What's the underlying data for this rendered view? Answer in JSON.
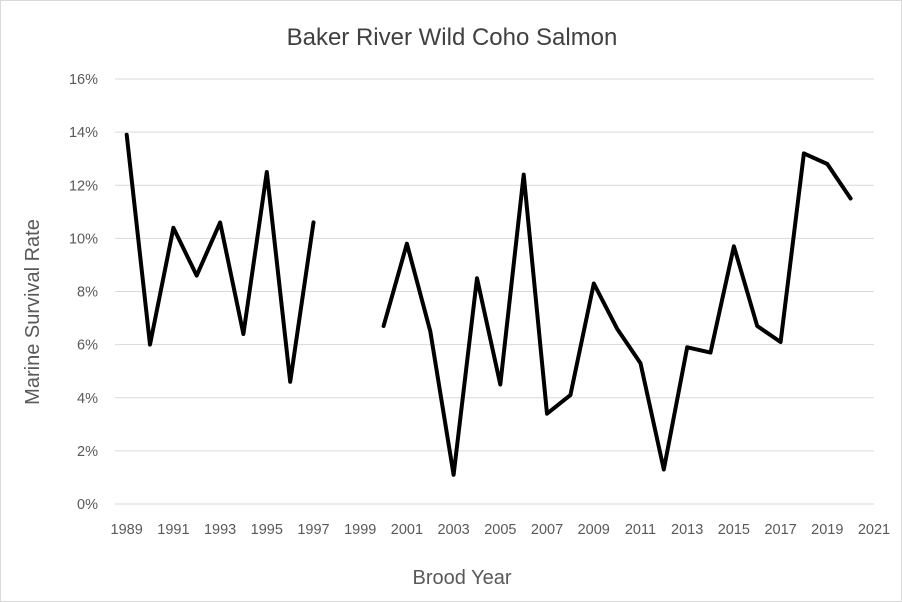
{
  "chart_data": {
    "type": "line",
    "title": "Baker River Wild Coho Salmon",
    "xlabel": "Brood Year",
    "ylabel": "Marine Survival Rate",
    "ylim": [
      0,
      0.16
    ],
    "xlim": [
      1988.5,
      2021
    ],
    "y_ticks": [
      "0%",
      "2%",
      "4%",
      "6%",
      "8%",
      "10%",
      "12%",
      "14%",
      "16%"
    ],
    "x_ticks": [
      "1989",
      "1991",
      "1993",
      "1995",
      "1997",
      "1999",
      "2001",
      "2003",
      "2005",
      "2007",
      "2009",
      "2011",
      "2013",
      "2015",
      "2017",
      "2019",
      "2021"
    ],
    "grid": true,
    "legend": "none",
    "series": [
      {
        "x": [
          1989,
          1990,
          1991,
          1992,
          1993,
          1994,
          1995,
          1996,
          1997,
          1998,
          1999,
          2000,
          2001,
          2002,
          2003,
          2004,
          2005,
          2006,
          2007,
          2008,
          2009,
          2010,
          2011,
          2012,
          2013,
          2014,
          2015,
          2016,
          2017,
          2018,
          2019,
          2020
        ],
        "y": [
          0.139,
          0.06,
          0.104,
          0.086,
          0.106,
          0.064,
          0.125,
          0.046,
          0.106,
          null,
          null,
          0.067,
          0.098,
          0.065,
          0.011,
          0.085,
          0.045,
          0.124,
          0.034,
          0.041,
          0.083,
          0.066,
          0.053,
          0.013,
          0.059,
          0.057,
          0.097,
          0.067,
          0.061,
          0.132,
          0.128,
          0.115
        ],
        "color": "#000000"
      }
    ]
  }
}
